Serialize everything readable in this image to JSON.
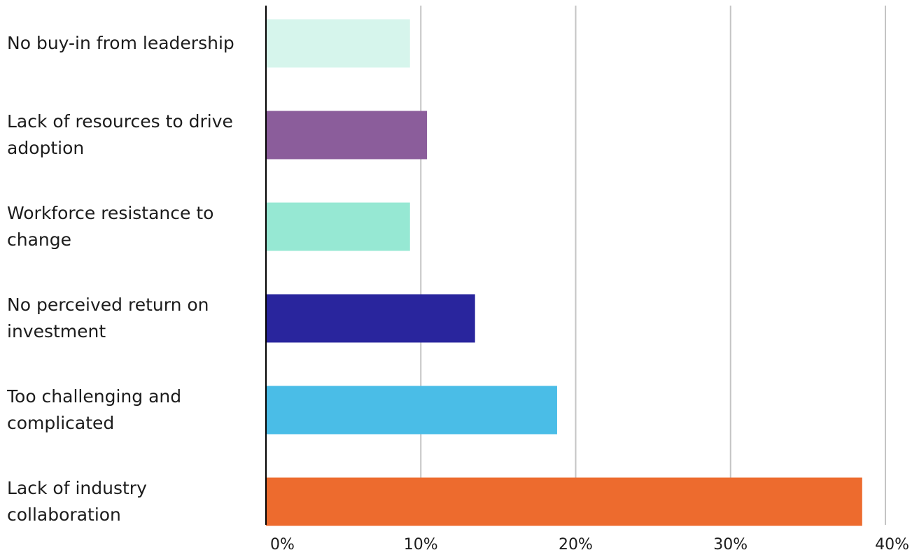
{
  "chart_data": {
    "type": "bar",
    "orientation": "horizontal",
    "title": "",
    "xlabel": "",
    "ylabel": "",
    "categories": [
      "No buy-in from leadership",
      "Lack of resources to drive adoption",
      "Workforce resistance to change",
      "No perceived return on investment",
      "Too challenging and complicated",
      "Lack of industry collaboration"
    ],
    "values": [
      9.3,
      10.4,
      9.3,
      13.5,
      18.8,
      38.5
    ],
    "colors": [
      "#d6f5ec",
      "#8b5d9b",
      "#96e8d3",
      "#29259d",
      "#4abde7",
      "#ed6b2e"
    ],
    "xlim": [
      0,
      40
    ],
    "ticks": [
      0,
      10,
      20,
      30,
      40
    ],
    "tick_labels": [
      "0%",
      "10%",
      "20%",
      "30%",
      "40%"
    ],
    "grid": true,
    "legend": "none"
  }
}
